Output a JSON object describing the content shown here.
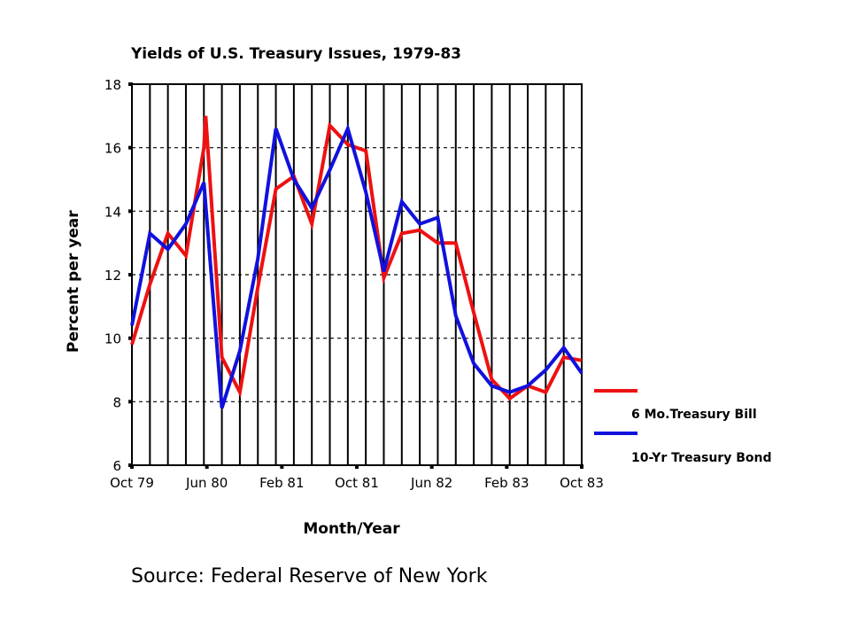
{
  "chart_data": {
    "type": "line",
    "title": "Yields of U.S. Treasury Issues, 1979-83",
    "xlabel": "Month/Year",
    "ylabel": "Percent per year",
    "ylim": [
      6,
      18
    ],
    "yticks": [
      6,
      8,
      10,
      12,
      14,
      16,
      18
    ],
    "xtick_labels": [
      "Oct 79",
      "Jun 80",
      "Feb 81",
      "Oct 81",
      "Jun 82",
      "Feb 83",
      "Oct 83"
    ],
    "x_periods": 25,
    "grid": "vertical solid lines, horizontal dashed lines",
    "legend_position": "right",
    "series": [
      {
        "name": "6 Mo.Treasury Bill",
        "color": "#ee1111",
        "x": [
          0,
          1,
          2,
          3,
          4,
          4.1,
          5,
          6,
          7,
          8,
          9,
          10,
          11,
          12,
          13,
          14,
          15,
          16,
          17,
          18,
          19,
          20,
          21,
          22,
          23,
          24,
          25
        ],
        "values": [
          9.8,
          11.7,
          13.3,
          12.6,
          16.0,
          17.0,
          9.4,
          8.3,
          11.6,
          14.7,
          15.1,
          13.6,
          16.7,
          16.1,
          15.9,
          11.9,
          13.3,
          13.4,
          13.0,
          13.0,
          10.8,
          8.7,
          8.1,
          8.5,
          8.3,
          9.4,
          9.3
        ]
      },
      {
        "name": "10-Yr Treasury Bond",
        "color": "#1111dd",
        "x": [
          0,
          1,
          2,
          3,
          4,
          5,
          6,
          7,
          8,
          9,
          10,
          11,
          12,
          13,
          14,
          15,
          16,
          17,
          18,
          19,
          20,
          21,
          22,
          23,
          24,
          25
        ],
        "values": [
          10.4,
          13.3,
          12.8,
          13.6,
          14.9,
          7.8,
          9.6,
          12.5,
          16.6,
          15.0,
          14.1,
          15.3,
          16.6,
          14.6,
          12.1,
          14.3,
          13.6,
          13.8,
          10.7,
          9.2,
          8.5,
          8.3,
          8.5,
          9.0,
          9.7,
          8.9
        ]
      }
    ]
  },
  "source_text": "Source: Federal Reserve of New York"
}
